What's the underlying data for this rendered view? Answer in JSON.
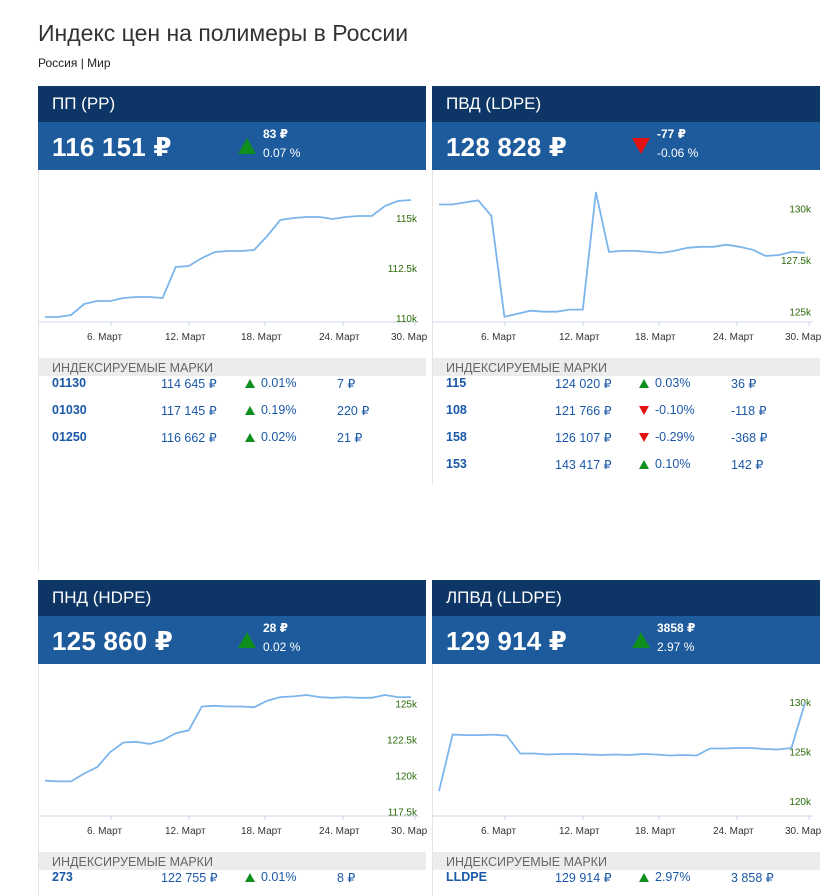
{
  "page": {
    "title": "Индекс цен на полимеры в России"
  },
  "regions": {
    "russia": "Россия",
    "separator": "|",
    "world": "Мир"
  },
  "section_label": "ИНДЕКСИРУЕМЫЕ МАРКИ",
  "cards": [
    {
      "title": "ПП (PP)",
      "price": "116 151 ₽",
      "direction": "up",
      "change_abs": "83 ₽",
      "change_pct": "0.07 %",
      "chart_data": {
        "type": "line",
        "title": "ПП (PP)",
        "x_labels": [
          "6. Март",
          "12. Март",
          "18. Март",
          "24. Март",
          "30. Март"
        ],
        "y_ticks": [
          "110k",
          "112.5k",
          "115k"
        ],
        "ylim": [
          109800,
          116500
        ],
        "values": [
          110050,
          110050,
          110150,
          110700,
          110850,
          110850,
          111000,
          111050,
          111050,
          111000,
          112550,
          112600,
          113000,
          113300,
          113350,
          113350,
          113400,
          114100,
          114900,
          115000,
          115050,
          115050,
          114950,
          115050,
          115100,
          115100,
          115600,
          115850,
          115900
        ]
      },
      "marks": [
        {
          "code": "01130",
          "price": "114 645 ₽",
          "direction": "up",
          "pct": "0.01%",
          "abs": "7 ₽"
        },
        {
          "code": "01030",
          "price": "117 145 ₽",
          "direction": "up",
          "pct": "0.19%",
          "abs": "220 ₽"
        },
        {
          "code": "01250",
          "price": "116 662 ₽",
          "direction": "up",
          "pct": "0.02%",
          "abs": "21 ₽"
        }
      ]
    },
    {
      "title": "ПВД (LDPE)",
      "price": "128 828 ₽",
      "direction": "down",
      "change_abs": "-77 ₽",
      "change_pct": "-0.06 %",
      "chart_data": {
        "type": "line",
        "title": "ПВД (LDPE)",
        "x_labels": [
          "6. Март",
          "12. Март",
          "18. Март",
          "24. Март",
          "30. Март"
        ],
        "y_ticks": [
          "125k",
          "127.5k",
          "130k"
        ],
        "ylim": [
          124500,
          131000
        ],
        "values": [
          130200,
          130200,
          130300,
          130400,
          129650,
          124750,
          124900,
          125050,
          125000,
          125000,
          125100,
          125100,
          130800,
          127900,
          127950,
          127950,
          127900,
          127850,
          127950,
          128100,
          128150,
          128150,
          128250,
          128150,
          128000,
          127700,
          127750,
          127900,
          127850
        ]
      },
      "marks": [
        {
          "code": "115",
          "price": "124 020 ₽",
          "direction": "up",
          "pct": "0.03%",
          "abs": "36 ₽"
        },
        {
          "code": "108",
          "price": "121 766 ₽",
          "direction": "down",
          "pct": "-0.10%",
          "abs": "-118 ₽"
        },
        {
          "code": "158",
          "price": "126 107 ₽",
          "direction": "down",
          "pct": "-0.29%",
          "abs": "-368 ₽"
        },
        {
          "code": "153",
          "price": "143 417 ₽",
          "direction": "up",
          "pct": "0.10%",
          "abs": "142 ₽"
        }
      ]
    },
    {
      "title": "ПНД (HDPE)",
      "price": "125 860 ₽",
      "direction": "up",
      "change_abs": "28 ₽",
      "change_pct": "0.02 %",
      "chart_data": {
        "type": "line",
        "title": "ПНД (HDPE)",
        "x_labels": [
          "6. Март",
          "12. Март",
          "18. Март",
          "24. Март",
          "30. Март"
        ],
        "y_ticks": [
          "117.5k",
          "120k",
          "122.5k",
          "125k"
        ],
        "ylim": [
          117200,
          126500
        ],
        "values": [
          119650,
          119600,
          119600,
          120150,
          120600,
          121650,
          122300,
          122350,
          122200,
          122450,
          122950,
          123150,
          124800,
          124850,
          124800,
          124800,
          124750,
          125200,
          125450,
          125500,
          125600,
          125450,
          125400,
          125450,
          125400,
          125400,
          125600,
          125450,
          125450
        ]
      },
      "marks": [
        {
          "code": "273",
          "price": "122 755 ₽",
          "direction": "up",
          "pct": "0.01%",
          "abs": "8 ₽"
        }
      ]
    },
    {
      "title": "ЛПВД (LLDPE)",
      "price": "129 914 ₽",
      "direction": "up",
      "change_abs": "3858 ₽",
      "change_pct": "2.97 %",
      "chart_data": {
        "type": "line",
        "title": "ЛПВД (LLDPE)",
        "x_labels": [
          "6. Март",
          "12. Март",
          "18. Март",
          "24. Март",
          "30. Март"
        ],
        "y_ticks": [
          "120k",
          "125k",
          "130k"
        ],
        "ylim": [
          118500,
          132000
        ],
        "values": [
          121000,
          126700,
          126650,
          126650,
          126700,
          126600,
          124800,
          124800,
          124700,
          124750,
          124750,
          124700,
          124650,
          124700,
          124650,
          124750,
          124700,
          124600,
          124650,
          124600,
          125300,
          125300,
          125350,
          125350,
          125250,
          125200,
          125350,
          129900
        ]
      },
      "marks": [
        {
          "code": "LLDPE",
          "price": "129 914 ₽",
          "direction": "up",
          "pct": "2.97%",
          "abs": "3 858 ₽"
        }
      ]
    }
  ]
}
